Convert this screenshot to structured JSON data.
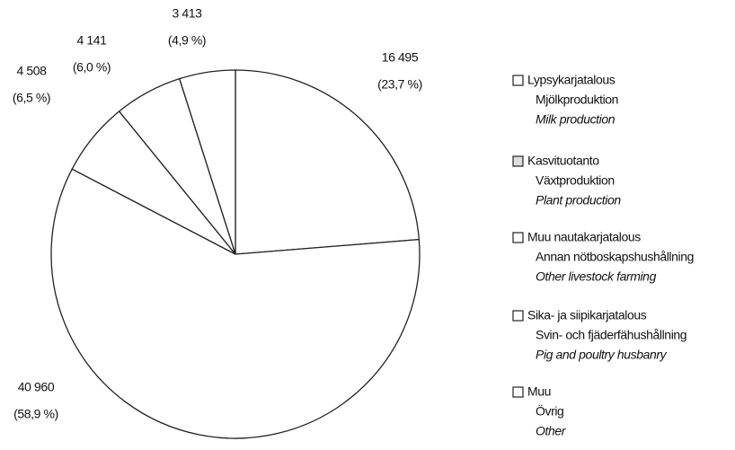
{
  "chart_data": {
    "type": "pie",
    "values": [
      16495,
      40960,
      4508,
      4141,
      3413
    ],
    "value_labels": [
      "16 495",
      "40 960",
      "4 508",
      "4 141",
      "3 413"
    ],
    "percents": [
      23.7,
      58.9,
      6.5,
      6.0,
      4.9
    ],
    "percent_labels": [
      "(23,7 %)",
      "(58,9 %)",
      "(6,5 %)",
      "(6,0 %)",
      "(4,9 %)"
    ],
    "series": [
      {
        "fi": "Lypsykarjatalous",
        "sv": "Mjölkproduktion",
        "en": "Milk production",
        "color": "#ffffff"
      },
      {
        "fi": "Kasvituotanto",
        "sv": "Växtproduktion",
        "en": "Plant production",
        "color": "#ffffff"
      },
      {
        "fi": "Muu nautakarjatalous",
        "sv": "Annan nötboskapshushållning",
        "en": "Other livestock farming",
        "color": "#ffffff"
      },
      {
        "fi": "Sika- ja siipikarjatalous",
        "sv": "Svin- och fjäderfähushållning",
        "en": "Pig and poultry husbanry",
        "color": "#ffffff"
      },
      {
        "fi": "Muu",
        "sv": "Övrig",
        "en": "Other",
        "color": "#ffffff"
      }
    ]
  }
}
